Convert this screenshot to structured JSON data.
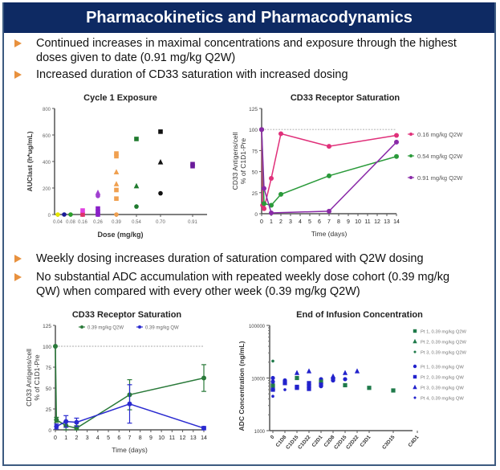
{
  "header": {
    "title": "Pharmacokinetics and Pharmacodynamics"
  },
  "bullets_top": [
    {
      "text_line1": "Continued increases in maximal concentrations and exposure through the highest",
      "text_line2": "doses given to date (0.91 mg/kg Q2W)"
    },
    {
      "text_line1": " Increased duration of CD33 saturation with increased dosing",
      "text_line2": ""
    }
  ],
  "bullets_bottom": [
    {
      "text_line1": "Weekly dosing increases duration of saturation compared with Q2W dosing",
      "text_line2": ""
    },
    {
      "text_line1": "No substantial ADC accumulation with repeated weekly dose cohort (0.39 mg/kg",
      "text_line2": "QW) when compared with every other week (0.39 mg/kg Q2W)"
    }
  ],
  "colors": {
    "header_bg": "#0e2a63",
    "bullet_arrow": "#e8913e",
    "frame": "#3c5a80"
  },
  "chart_data": [
    {
      "id": "cycle1",
      "type": "scatter",
      "title": "Cycle 1 Exposure",
      "xlabel": "Dose (mg/kg)",
      "ylabel": "AUClast (h*ug/mL)",
      "ylim": [
        0,
        800
      ],
      "yticks": [
        0,
        200,
        400,
        600,
        800
      ],
      "categories": [
        "0.04",
        "0.08",
        "0.16",
        "0.26",
        "0.39",
        "0.54",
        "0.70",
        "0.91"
      ],
      "points": [
        {
          "cat": 0,
          "y": 0,
          "color": "#e6e600",
          "shape": "circle"
        },
        {
          "cat": 0.5,
          "y": 0,
          "color": "#1a1a99",
          "shape": "circle"
        },
        {
          "cat": 1,
          "y": 0,
          "color": "#2aa02a",
          "shape": "circle"
        },
        {
          "cat": 2,
          "y": 0,
          "color": "#e0306a",
          "shape": "square"
        },
        {
          "cat": 2,
          "y": 30,
          "color": "#e040e0",
          "shape": "square"
        },
        {
          "cat": 3,
          "y": 0,
          "color": "#8a20c8",
          "shape": "square"
        },
        {
          "cat": 3,
          "y": 20,
          "color": "#8a20c8",
          "shape": "square"
        },
        {
          "cat": 3,
          "y": 45,
          "color": "#8a20c8",
          "shape": "square"
        },
        {
          "cat": 3,
          "y": 140,
          "color": "#a040d0",
          "shape": "circle"
        },
        {
          "cat": 3,
          "y": 165,
          "color": "#a040d0",
          "shape": "triangle"
        },
        {
          "cat": 4,
          "y": 0,
          "color": "#f0a050",
          "shape": "circle"
        },
        {
          "cat": 4,
          "y": 120,
          "color": "#f0a050",
          "shape": "square"
        },
        {
          "cat": 4,
          "y": 185,
          "color": "#f0a050",
          "shape": "square"
        },
        {
          "cat": 4,
          "y": 230,
          "color": "#f0a050",
          "shape": "triangle"
        },
        {
          "cat": 4,
          "y": 320,
          "color": "#f0a050",
          "shape": "triangle"
        },
        {
          "cat": 4,
          "y": 440,
          "color": "#f0a050",
          "shape": "square"
        },
        {
          "cat": 4,
          "y": 460,
          "color": "#f0a050",
          "shape": "square"
        },
        {
          "cat": 5,
          "y": 60,
          "color": "#1f7a2e",
          "shape": "circle"
        },
        {
          "cat": 5,
          "y": 215,
          "color": "#1f7a2e",
          "shape": "triangle"
        },
        {
          "cat": 5,
          "y": 570,
          "color": "#1f7a2e",
          "shape": "square"
        },
        {
          "cat": 6,
          "y": 160,
          "color": "#111111",
          "shape": "circle"
        },
        {
          "cat": 6,
          "y": 395,
          "color": "#111111",
          "shape": "triangle"
        },
        {
          "cat": 6,
          "y": 625,
          "color": "#111111",
          "shape": "square"
        },
        {
          "cat": 7,
          "y": 365,
          "color": "#6a1a9a",
          "shape": "square"
        },
        {
          "cat": 7,
          "y": 380,
          "color": "#6a1a9a",
          "shape": "square"
        }
      ]
    },
    {
      "id": "cd33_q2w",
      "type": "line",
      "title": "CD33 Receptor Saturation",
      "xlabel": "Time (days)",
      "ylabel": "CD33 Antigens/cell % of C1D1-Pre",
      "ylim": [
        0,
        125
      ],
      "yticks": [
        0,
        25,
        50,
        75,
        100,
        125
      ],
      "xlim": [
        0,
        14
      ],
      "xticks": [
        0,
        1,
        2,
        3,
        4,
        5,
        6,
        7,
        8,
        9,
        10,
        11,
        12,
        13,
        14
      ],
      "reference_line": 100,
      "legend_position": "right",
      "series": [
        {
          "name": "0.16 mg/kg Q2W",
          "color": "#e0307a",
          "x": [
            0,
            0.1,
            0.25,
            1,
            2,
            7,
            14
          ],
          "y": [
            100,
            10,
            6,
            42,
            95,
            80,
            93
          ]
        },
        {
          "name": "0.54 mg/kg Q2W",
          "color": "#2a9a3a",
          "x": [
            0,
            0.25,
            1,
            2,
            7,
            14
          ],
          "y": [
            100,
            12,
            10,
            23,
            45,
            68
          ]
        },
        {
          "name": "0.91 mg/kg Q2W",
          "color": "#8a2aa8",
          "x": [
            0,
            0.25,
            1,
            7,
            14
          ],
          "y": [
            100,
            30,
            1,
            3,
            85
          ]
        }
      ]
    },
    {
      "id": "cd33_qw",
      "type": "line",
      "title": "CD33 Receptor Saturation",
      "xlabel": "Time (days)",
      "ylabel": "CD33 Antigens/cell % of C1D1-Pre",
      "ylim": [
        0,
        125
      ],
      "yticks": [
        0,
        25,
        50,
        75,
        100,
        125
      ],
      "xlim": [
        0,
        14
      ],
      "xticks": [
        0,
        1,
        2,
        3,
        4,
        5,
        6,
        7,
        8,
        9,
        10,
        11,
        12,
        13,
        14
      ],
      "reference_line": 100,
      "legend_position": "top",
      "series": [
        {
          "name": "0.39 mg/kg Q2W",
          "color": "#2a7a3a",
          "x": [
            0,
            0.1,
            1,
            2,
            7,
            14
          ],
          "y": [
            100,
            12,
            5,
            2,
            42,
            62
          ],
          "err": [
            0,
            3,
            5,
            3,
            18,
            16
          ]
        },
        {
          "name": "0.39 mg/kg QW",
          "color": "#2a2ad0",
          "x": [
            0.1,
            1,
            2,
            7,
            14
          ],
          "y": [
            4,
            10,
            9,
            31,
            2
          ],
          "err": [
            3,
            7,
            5,
            23,
            2
          ]
        }
      ]
    },
    {
      "id": "eoi",
      "type": "scatter",
      "title": "End of Infusion Concentration",
      "xlabel": "",
      "ylabel": "ADC Concentration (ng/mL)",
      "yscale": "log",
      "ylim": [
        1000,
        100000
      ],
      "yticks": [
        1000,
        10000,
        100000
      ],
      "categories": [
        "0",
        "C1D8",
        "C1D15",
        "C1D22",
        "C2D1",
        "C2D8",
        "C2D15",
        "C2D22",
        "C3D1",
        "C3D15",
        "C4D1"
      ],
      "category_positions": [
        0,
        1,
        2,
        3,
        4,
        5,
        6,
        7,
        8,
        10,
        12
      ],
      "legend_position": "right",
      "legend": [
        {
          "name": "Pt 1, 0.39 mg/kg Q2W",
          "color": "#1f7a4a",
          "shape": "square"
        },
        {
          "name": "Pt 2, 0.39 mg/kg Q2W",
          "color": "#1f7a4a",
          "shape": "triangle"
        },
        {
          "name": "Pt 3, 0.39 mg/kg Q2W",
          "color": "#1f7a4a",
          "shape": "circle-small"
        },
        {
          "name": "Pt 1, 0.39 mg/kg QW",
          "color": "#2222cc",
          "shape": "circle"
        },
        {
          "name": "Pt 2, 0.39 mg/kg QW",
          "color": "#2222cc",
          "shape": "square"
        },
        {
          "name": "Pt 3, 0.39 mg/kg QW",
          "color": "#2222cc",
          "shape": "triangle"
        },
        {
          "name": "Pt 4, 0.39 mg/kg QW",
          "color": "#2222cc",
          "shape": "circle-small"
        }
      ],
      "points": [
        {
          "pos": 0,
          "y": 21000,
          "s": 2
        },
        {
          "pos": 0,
          "y": 7200,
          "s": 0
        },
        {
          "pos": 0,
          "y": 6500,
          "s": 1
        },
        {
          "pos": 0,
          "y": 10000,
          "s": 3
        },
        {
          "pos": 0,
          "y": 6000,
          "s": 4
        },
        {
          "pos": 0,
          "y": 4500,
          "s": 6
        },
        {
          "pos": 0,
          "y": 8500,
          "s": 3
        },
        {
          "pos": 1,
          "y": 9000,
          "s": 3
        },
        {
          "pos": 1,
          "y": 8000,
          "s": 4
        },
        {
          "pos": 1,
          "y": 6000,
          "s": 6
        },
        {
          "pos": 2,
          "y": 12500,
          "s": 5
        },
        {
          "pos": 2,
          "y": 10000,
          "s": 0
        },
        {
          "pos": 2,
          "y": 6800,
          "s": 4
        },
        {
          "pos": 2,
          "y": 6500,
          "s": 4
        },
        {
          "pos": 3,
          "y": 13500,
          "s": 5
        },
        {
          "pos": 3,
          "y": 8000,
          "s": 4
        },
        {
          "pos": 3,
          "y": 7000,
          "s": 4
        },
        {
          "pos": 3,
          "y": 6200,
          "s": 4
        },
        {
          "pos": 4,
          "y": 9500,
          "s": 3
        },
        {
          "pos": 4,
          "y": 8500,
          "s": 0
        },
        {
          "pos": 4,
          "y": 7500,
          "s": 4
        },
        {
          "pos": 4,
          "y": 7000,
          "s": 3
        },
        {
          "pos": 5,
          "y": 10800,
          "s": 5
        },
        {
          "pos": 5,
          "y": 9500,
          "s": 4
        },
        {
          "pos": 5,
          "y": 9000,
          "s": 3
        },
        {
          "pos": 6,
          "y": 12500,
          "s": 5
        },
        {
          "pos": 6,
          "y": 9500,
          "s": 3
        },
        {
          "pos": 6,
          "y": 7300,
          "s": 0
        },
        {
          "pos": 7,
          "y": 13500,
          "s": 5
        },
        {
          "pos": 8,
          "y": 6500,
          "s": 0
        },
        {
          "pos": 10,
          "y": 5800,
          "s": 0
        }
      ]
    }
  ]
}
